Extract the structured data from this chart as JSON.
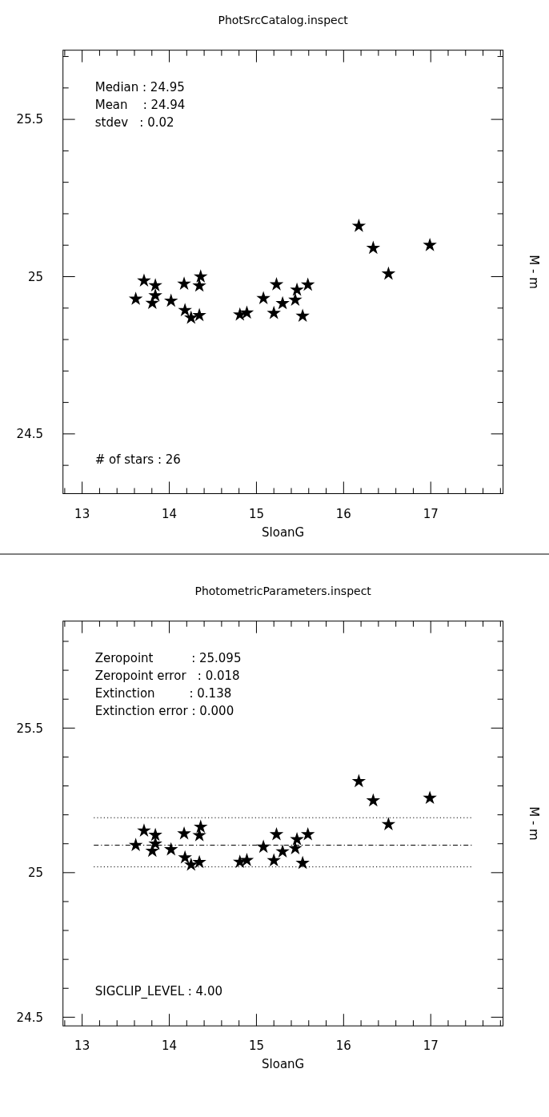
{
  "chart_data": [
    {
      "type": "scatter",
      "title": "PhotSrcCatalog.inspect",
      "xlabel": "SloanG",
      "ylabel": "M - m",
      "xlim": [
        12.78,
        17.83
      ],
      "xticks": [
        13,
        14,
        15,
        16,
        17
      ],
      "ylim": [
        24.31,
        25.72
      ],
      "yticks": [
        24.5,
        25,
        25.5
      ],
      "marker": "star",
      "grid": false,
      "annotations": [
        "Median : 24.95",
        "Mean    : 24.94",
        "stdev   : 0.02",
        "# of stars : 26"
      ],
      "series": [
        {
          "color": "#000000",
          "x": [
            13.615,
            13.71,
            13.84,
            13.84,
            13.805,
            14.02,
            14.17,
            14.18,
            14.25,
            14.345,
            14.345,
            14.36,
            14.81,
            14.89,
            15.08,
            15.2,
            15.23,
            15.3,
            15.445,
            15.465,
            15.53,
            15.59,
            16.175,
            16.34,
            16.515,
            16.99
          ],
          "values": [
            24.929,
            24.987,
            24.972,
            24.94,
            24.916,
            24.923,
            24.977,
            24.893,
            24.869,
            24.877,
            24.971,
            25.0,
            24.879,
            24.885,
            24.931,
            24.884,
            24.975,
            24.915,
            24.926,
            24.958,
            24.875,
            24.974,
            25.161,
            25.091,
            25.009,
            25.1
          ]
        }
      ]
    },
    {
      "type": "scatter",
      "title": "PhotometricParameters.inspect",
      "xlabel": "SloanG",
      "ylabel": "M - m",
      "xlim": [
        12.78,
        17.83
      ],
      "xticks": [
        13,
        14,
        15,
        16,
        17
      ],
      "ylim": [
        24.47,
        25.87
      ],
      "yticks": [
        24.5,
        25,
        25.5
      ],
      "marker": "star",
      "grid": false,
      "annotations": [
        "Zeropoint          : 25.095",
        "Zeropoint error   : 0.018",
        "Extinction         : 0.138",
        "Extinction error : 0.000",
        "SIGCLIP_LEVEL : 4.00"
      ],
      "ref_lines": [
        {
          "axis": "y",
          "value": 25.095,
          "label": null,
          "color": "#000000",
          "line_style": "dashdot"
        },
        {
          "axis": "y",
          "value": 25.19,
          "label": null,
          "color": "#000000",
          "line_style": "dotted"
        },
        {
          "axis": "y",
          "value": 25.02,
          "label": null,
          "color": "#000000",
          "line_style": "dotted"
        }
      ],
      "series": [
        {
          "color": "#000000",
          "x": [
            13.615,
            13.71,
            13.84,
            13.84,
            13.805,
            14.02,
            14.17,
            14.18,
            14.25,
            14.345,
            14.345,
            14.36,
            14.81,
            14.89,
            15.08,
            15.2,
            15.23,
            15.3,
            15.445,
            15.465,
            15.53,
            15.59,
            16.175,
            16.34,
            16.515,
            16.99
          ],
          "values": [
            25.095,
            25.145,
            25.13,
            25.1,
            25.075,
            25.08,
            25.135,
            25.052,
            25.027,
            25.036,
            25.129,
            25.158,
            25.037,
            25.043,
            25.089,
            25.042,
            25.132,
            25.073,
            25.084,
            25.115,
            25.033,
            25.132,
            25.316,
            25.249,
            25.167,
            25.258
          ]
        }
      ]
    }
  ]
}
